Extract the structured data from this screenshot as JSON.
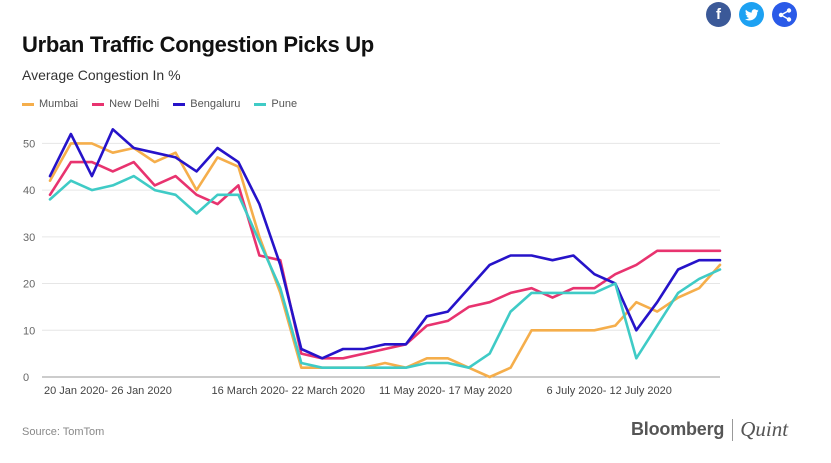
{
  "share": {
    "buttons": [
      {
        "name": "facebook",
        "glyph": "f",
        "color": "#3b5998"
      },
      {
        "name": "twitter",
        "glyph": "t",
        "color": "#1da1f2"
      },
      {
        "name": "share",
        "glyph": "",
        "color": "#2a5ae8"
      }
    ]
  },
  "chart_data": {
    "type": "line",
    "title": "Urban Traffic Congestion Picks Up",
    "subtitle": "Average Congestion In %",
    "ylim": [
      0,
      55
    ],
    "yticks": [
      0,
      10,
      20,
      30,
      40,
      50
    ],
    "grid": true,
    "legend_position": "top-left",
    "x_tick_labels": [
      {
        "index": 0,
        "label": "20 Jan 2020- 26 Jan 2020"
      },
      {
        "index": 8,
        "label": "16 March 2020- 22 March 2020"
      },
      {
        "index": 16,
        "label": "11 May 2020- 17 May 2020"
      },
      {
        "index": 24,
        "label": "6 July 2020- 12 July 2020"
      }
    ],
    "series": [
      {
        "name": "Mumbai",
        "color": "#f5ae4b",
        "values": [
          42,
          50,
          50,
          48,
          49,
          46,
          48,
          40,
          47,
          45,
          30,
          18,
          2,
          2,
          2,
          2,
          3,
          2,
          4,
          4,
          2,
          0,
          2,
          10,
          10,
          10,
          10,
          11,
          16,
          14,
          17,
          19,
          24
        ]
      },
      {
        "name": "New Delhi",
        "color": "#e8336f",
        "values": [
          39,
          46,
          46,
          44,
          46,
          41,
          43,
          39,
          37,
          41,
          26,
          25,
          5,
          4,
          4,
          5,
          6,
          7,
          11,
          12,
          15,
          16,
          18,
          19,
          17,
          19,
          19,
          22,
          24,
          27,
          27,
          27,
          27
        ]
      },
      {
        "name": "Bengaluru",
        "color": "#2613c9",
        "values": [
          43,
          52,
          43,
          53,
          49,
          48,
          47,
          44,
          49,
          46,
          37,
          24,
          6,
          4,
          6,
          6,
          7,
          7,
          13,
          14,
          19,
          24,
          26,
          26,
          25,
          26,
          22,
          20,
          10,
          16,
          23,
          25,
          25
        ]
      },
      {
        "name": "Pune",
        "color": "#3fcbc6",
        "values": [
          38,
          42,
          40,
          41,
          43,
          40,
          39,
          35,
          39,
          39,
          29,
          19,
          3,
          2,
          2,
          2,
          2,
          2,
          3,
          3,
          2,
          5,
          14,
          18,
          18,
          18,
          18,
          20,
          4,
          11,
          18,
          21,
          23
        ]
      }
    ]
  },
  "footer": {
    "source": "Source: TomTom",
    "brand_bloomberg": "Bloomberg",
    "brand_quint": "Quint"
  }
}
